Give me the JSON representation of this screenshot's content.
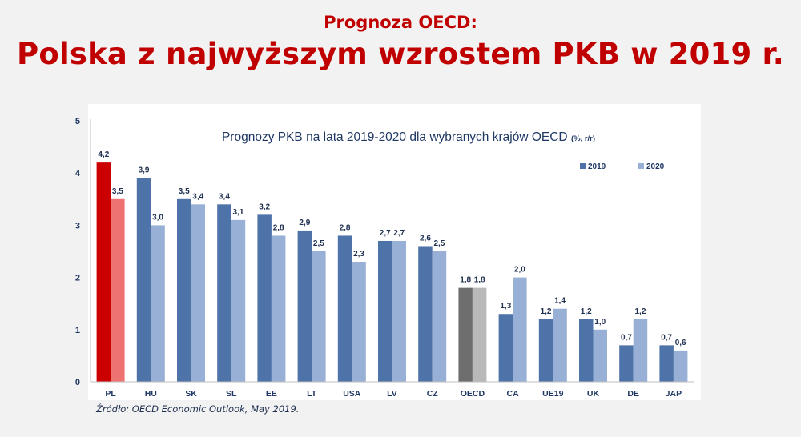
{
  "header": {
    "kicker": "Prognoza OECD:",
    "headline": "Polska z najwyższym wzrostem PKB w 2019 r."
  },
  "source": "Źródło: OECD Economic Outlook, May 2019.",
  "colors": {
    "y2019": "#4e73a8",
    "y2020": "#98b0d6",
    "highlight_pl_2019": "#cc0000",
    "highlight_pl_2020": "#ee7272",
    "highlight_oecd_2019": "#6e6e6e",
    "highlight_oecd_2020": "#b9b9b9",
    "title": "#1f3864",
    "headline": "#c00000"
  },
  "chart_data": {
    "type": "bar",
    "title": "Prognozy PKB na lata 2019-2020 dla wybranych krajów OECD",
    "title_suffix": "(%, r/r)",
    "categories": [
      "PL",
      "HU",
      "SK",
      "SL",
      "EE",
      "LT",
      "USA",
      "LV",
      "CZ",
      "OECD",
      "CA",
      "UE19",
      "UK",
      "DE",
      "JAP"
    ],
    "series": [
      {
        "name": "2019",
        "values": [
          4.2,
          3.9,
          3.5,
          3.4,
          3.2,
          2.9,
          2.8,
          2.7,
          2.6,
          1.8,
          1.3,
          1.2,
          1.2,
          0.7,
          0.7
        ]
      },
      {
        "name": "2020",
        "values": [
          3.5,
          3.0,
          3.4,
          3.1,
          2.8,
          2.5,
          2.3,
          2.7,
          2.5,
          1.8,
          2.0,
          1.4,
          1.0,
          1.2,
          0.6
        ]
      }
    ],
    "data_labels": [
      [
        "4,2",
        "3,9",
        "3,5",
        "3,4",
        "3,2",
        "2,9",
        "2,8",
        "2,7",
        "2,6",
        "1,8",
        "1,3",
        "1,2",
        "1,2",
        "0,7",
        "0,7"
      ],
      [
        "3,5",
        "3,0",
        "3,4",
        "3,1",
        "2,8",
        "2,5",
        "2,3",
        "2,7",
        "2,5",
        "1,8",
        "2,0",
        "1,4",
        "1,0",
        "1,2",
        "0,6"
      ]
    ],
    "yticks": [
      "0",
      "1",
      "2",
      "3",
      "4",
      "5"
    ],
    "ylim": [
      0,
      5
    ],
    "grid": false,
    "legend_position": "top-right"
  }
}
